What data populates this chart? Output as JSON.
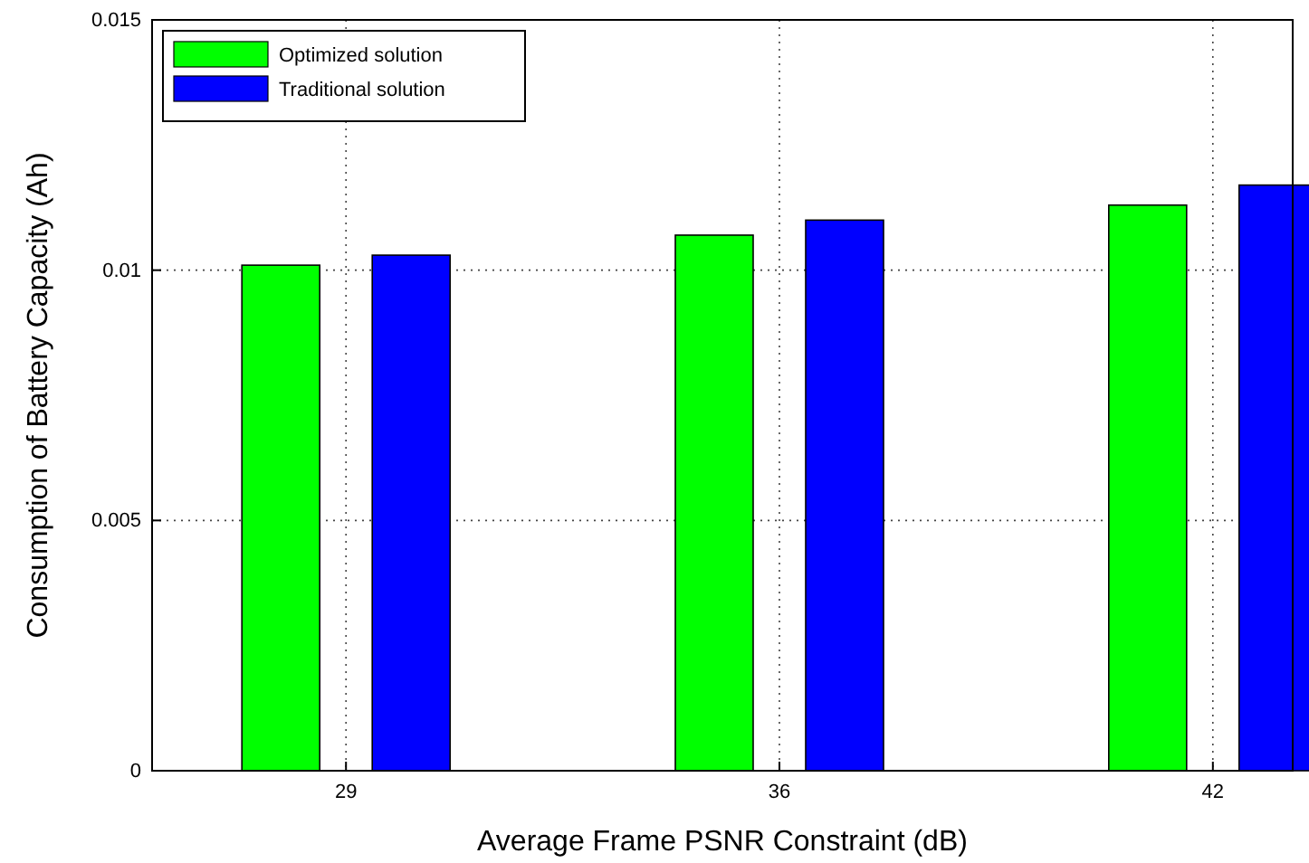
{
  "chart_data": {
    "type": "bar",
    "xlabel": "Average Frame PSNR Constraint (dB)",
    "ylabel": "Consumption of Battery Capacity (Ah)",
    "categories": [
      "29",
      "36",
      "42"
    ],
    "series": [
      {
        "name": "Optimized solution",
        "color": "#00ff00",
        "values": [
          0.0101,
          0.0107,
          0.0113
        ]
      },
      {
        "name": "Traditional solution",
        "color": "#0000ff",
        "values": [
          0.0103,
          0.011,
          0.0117
        ]
      }
    ],
    "ylim": [
      0,
      0.015
    ],
    "yticks": [
      0,
      0.005,
      0.01,
      0.015
    ],
    "grid": true,
    "legend": "top left"
  }
}
